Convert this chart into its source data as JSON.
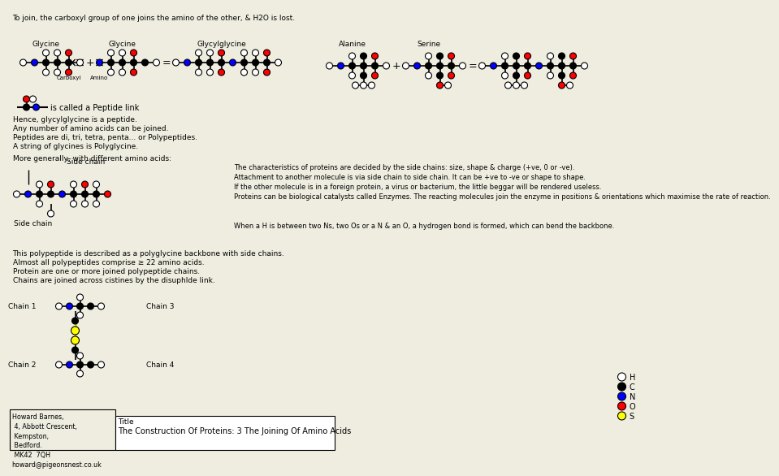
{
  "title": "The Construction Of Proteins: 3 The Joining Of Amino Acids",
  "title_label": "Title",
  "background_color": "#eeede0",
  "header_text": "To join, the carboxyl group of one joins the amino of the other, & H2O is lost.",
  "address": "Howard Barnes,\n 4, Abbott Crescent,\n Kempston,\n Bedford.\n MK42  7QH\nhoward@pigeonsnest.co.uk",
  "legend": {
    "items": [
      "H",
      "C",
      "N",
      "O",
      "S"
    ],
    "colors": [
      "white",
      "black",
      "blue",
      "red",
      "yellow"
    ],
    "edge_colors": [
      "black",
      "black",
      "black",
      "black",
      "black"
    ]
  },
  "colors": {
    "H": "white",
    "C": "black",
    "N": "blue",
    "O": "red",
    "S": "yellow"
  },
  "top_text_lines": [
    "Hence, glycylglycine is a peptide.",
    "Any number of amino acids can be joined.",
    "Peptides are di, tri, tetra, penta... or Polypeptides.",
    "A string of glycines is Polyglycine."
  ],
  "middle_text_lines": [
    "More generally, with different amino acids:"
  ],
  "bottom_left_text": [
    "This polypeptide is described as a polyglycine backbone with side chains.",
    "Almost all polypeptides comprise ≥ 22 amino acids.",
    "Protein are one or more joined polypeptide chains.",
    "Chains are joined across cistines by the disuphlde link."
  ],
  "right_text": [
    "The characteristics of proteins are decided by the side chains: size, shape & charge (+ve, 0 or -ve).",
    "Attachment to another molecule is via side chain to side chain. It can be +ve to -ve or shape to shape.",
    "If the other molecule is in a foreign protein, a virus or bacterium, the little beggar will be rendered useless.",
    "Proteins can be biological catalysts called Enzymes. The reacting molecules join the enzyme in positions & orientations which maximise the rate of reaction.",
    "",
    "When a H is between two Ns, two Os or a N & an O, a hydrogen bond is formed, which can bend the backbone."
  ],
  "labels": {
    "glycine1": "Glycine",
    "glycine2": "Glycine",
    "glycylglycine": "Glycylglycine",
    "alanine": "Alanine",
    "serine": "Serine",
    "carboxyl": "Carboxyl",
    "amino": "Amino",
    "peptide_link": "is called a Peptide link",
    "side_chain_top": "Side chain",
    "side_chain_bottom": "Side chain",
    "chain1": "Chain 1",
    "chain2": "Chain 2",
    "chain3": "Chain 3",
    "chain4": "Chain 4"
  }
}
